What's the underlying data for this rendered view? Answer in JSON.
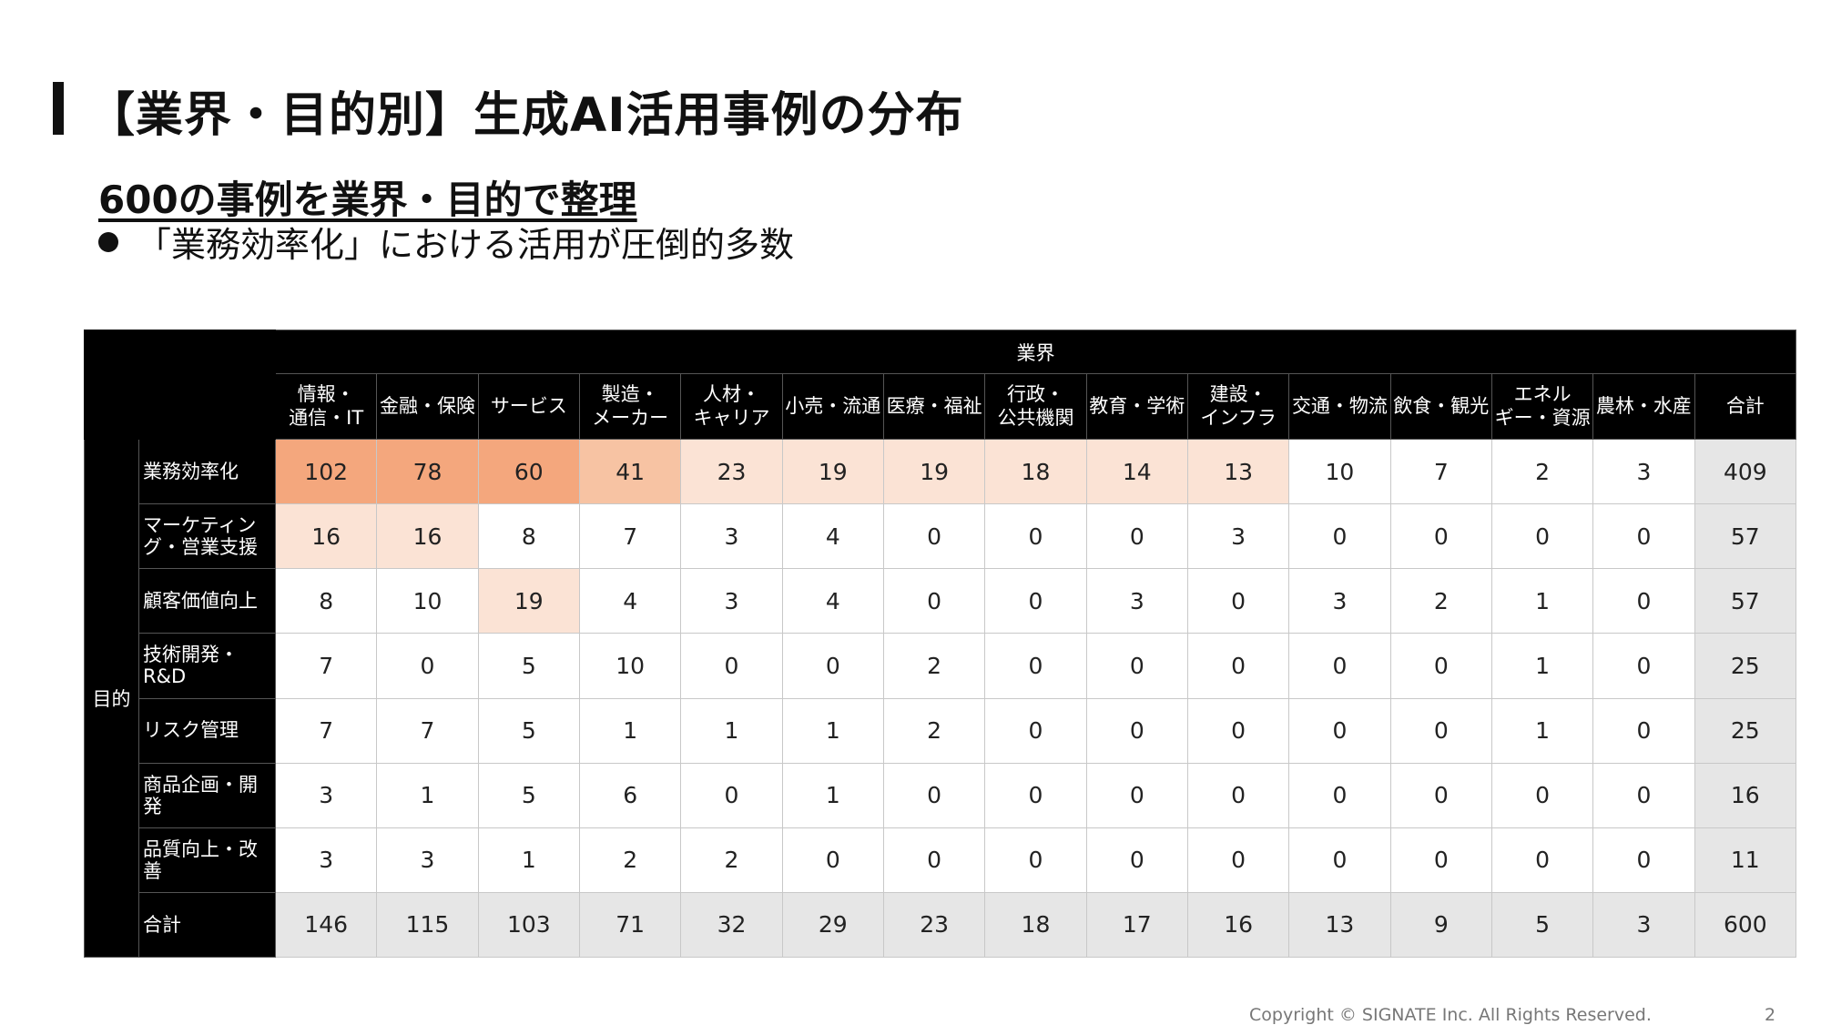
{
  "title": "【業界・目的別】生成AI活用事例の分布",
  "subtitle": "600の事例を業界・目的で整理",
  "bullet": "「業務効率化」における活用が圧倒的多数",
  "table": {
    "industry_header": "業界",
    "purpose_header": "目的",
    "industries": [
      "情報・\n通信・IT",
      "金融・保険",
      "サービス",
      "製造・\nメーカー",
      "人材・\nキャリア",
      "小売・流通",
      "医療・福祉",
      "行政・\n公共機関",
      "教育・学術",
      "建設・\nインフラ",
      "交通・物流",
      "飲食・観光",
      "エネル\nギー・資源",
      "農林・水産"
    ],
    "total_label": "合計",
    "rows": [
      {
        "label": "業務効率化",
        "values": [
          102,
          78,
          60,
          41,
          23,
          19,
          19,
          18,
          14,
          13,
          10,
          7,
          2,
          3
        ],
        "total": 409
      },
      {
        "label": "マーケティン\nグ・営業支援",
        "values": [
          16,
          16,
          8,
          7,
          3,
          4,
          0,
          0,
          0,
          3,
          0,
          0,
          0,
          0
        ],
        "total": 57
      },
      {
        "label": "顧客価値向上",
        "values": [
          8,
          10,
          19,
          4,
          3,
          4,
          0,
          0,
          3,
          0,
          3,
          2,
          1,
          0
        ],
        "total": 57
      },
      {
        "label": "技術開発・\nR&D",
        "values": [
          7,
          0,
          5,
          10,
          0,
          0,
          2,
          0,
          0,
          0,
          0,
          0,
          1,
          0
        ],
        "total": 25
      },
      {
        "label": "リスク管理",
        "values": [
          7,
          7,
          5,
          1,
          1,
          1,
          2,
          0,
          0,
          0,
          0,
          0,
          1,
          0
        ],
        "total": 25
      },
      {
        "label": "商品企画・開発",
        "values": [
          3,
          1,
          5,
          6,
          0,
          1,
          0,
          0,
          0,
          0,
          0,
          0,
          0,
          0
        ],
        "total": 16
      },
      {
        "label": "品質向上・改善",
        "values": [
          3,
          3,
          1,
          2,
          2,
          0,
          0,
          0,
          0,
          0,
          0,
          0,
          0,
          0
        ],
        "total": 11
      }
    ],
    "column_totals": [
      146,
      115,
      103,
      71,
      32,
      29,
      23,
      18,
      17,
      16,
      13,
      9,
      5,
      3
    ],
    "grand_total": 600
  },
  "heat_colors": {
    "high": "#f4a77d",
    "mid": "#f7c3a3",
    "low": "#fbe3d5",
    "none": "#ffffff"
  },
  "footer": "Copyright © SIGNATE Inc. All Rights Reserved.",
  "page_number": "2"
}
